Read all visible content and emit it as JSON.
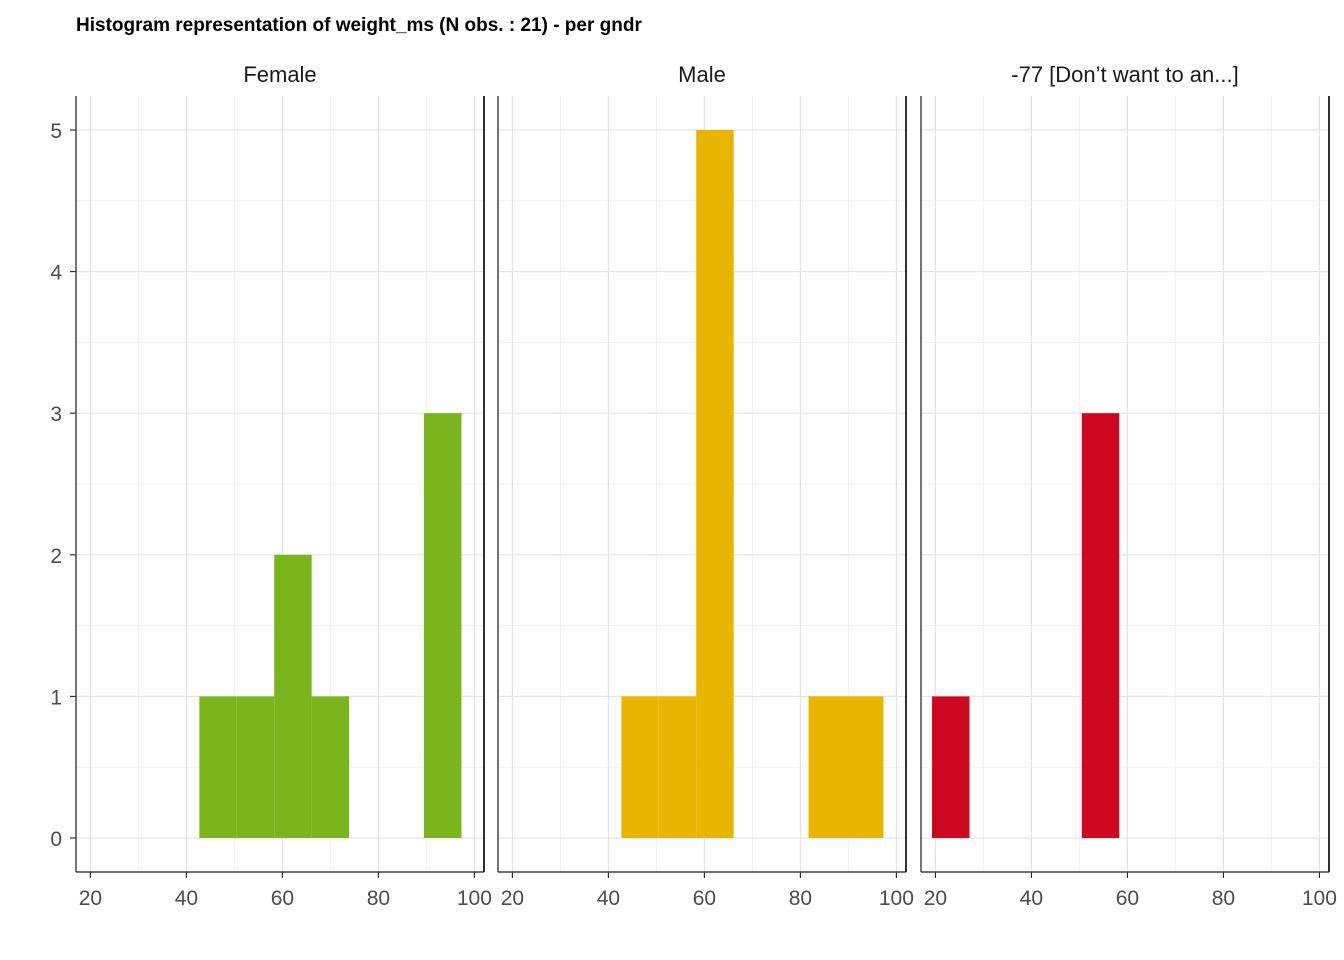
{
  "chart_data": {
    "type": "bar",
    "title": "Histogram representation of weight_ms (N obs. : 21) - per gndr",
    "xlabel": "",
    "ylabel": "",
    "xlim": [
      17,
      102
    ],
    "ylim": [
      -0.24,
      5.24
    ],
    "x_ticks": [
      "20",
      "40",
      "60",
      "80",
      "100"
    ],
    "y_ticks": [
      "0",
      "1",
      "2",
      "3",
      "4",
      "5"
    ],
    "bin_width": 7.8,
    "grid": true,
    "legend": "none",
    "panels": [
      {
        "name": "Female",
        "color": "#7AB51D",
        "bins": [
          {
            "x0": 42.7,
            "x1": 50.5,
            "count": 1
          },
          {
            "x0": 50.5,
            "x1": 58.3,
            "count": 1
          },
          {
            "x0": 58.3,
            "x1": 66.1,
            "count": 2
          },
          {
            "x0": 66.1,
            "x1": 73.9,
            "count": 1
          },
          {
            "x0": 89.5,
            "x1": 97.3,
            "count": 3
          }
        ]
      },
      {
        "name": "Male",
        "color": "#E8B500",
        "bins": [
          {
            "x0": 42.7,
            "x1": 50.5,
            "count": 1
          },
          {
            "x0": 50.5,
            "x1": 58.3,
            "count": 1
          },
          {
            "x0": 58.3,
            "x1": 66.1,
            "count": 5
          },
          {
            "x0": 81.7,
            "x1": 89.5,
            "count": 1
          },
          {
            "x0": 89.5,
            "x1": 97.3,
            "count": 1
          }
        ]
      },
      {
        "name": "-77 [Don’t want to an...]",
        "color": "#CE0820",
        "bins": [
          {
            "x0": 19.3,
            "x1": 27.1,
            "count": 1
          },
          {
            "x0": 50.5,
            "x1": 58.3,
            "count": 3
          }
        ]
      }
    ]
  }
}
